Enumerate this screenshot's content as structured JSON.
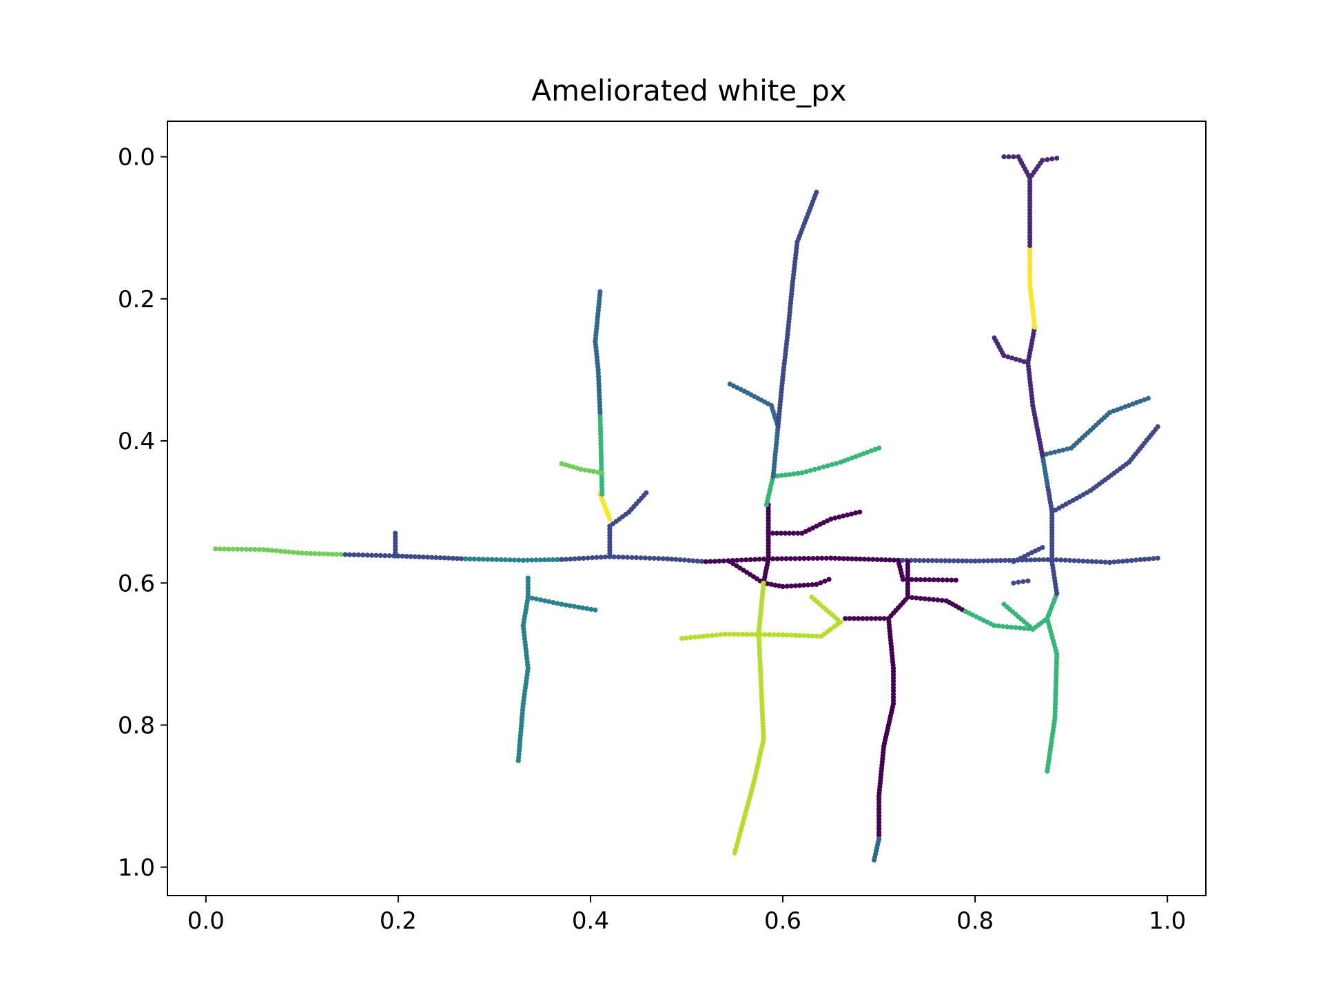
{
  "chart_data": {
    "type": "scatter",
    "title": "Ameliorated white_px",
    "xlabel": "",
    "ylabel": "",
    "xlim": [
      -0.04,
      1.04
    ],
    "ylim": [
      1.04,
      -0.05
    ],
    "y_inverted": true,
    "grid": false,
    "legend": "none",
    "colormap": "viridis",
    "x_ticks": [
      "0.0",
      "0.2",
      "0.4",
      "0.6",
      "0.8",
      "1.0"
    ],
    "y_ticks": [
      "0.0",
      "0.2",
      "0.4",
      "0.6",
      "0.8",
      "1.0"
    ],
    "colors": {
      "c0": "#440154",
      "c1": "#482878",
      "c2": "#3e4989",
      "c3": "#31688e",
      "c4": "#26828e",
      "c5": "#1f9e89",
      "c6": "#35b779",
      "c7": "#6ece58",
      "c8": "#b5de2b",
      "c9": "#fde725"
    },
    "segments": [
      {
        "color": "c7",
        "pts": [
          [
            0.01,
            0.552
          ],
          [
            0.06,
            0.553
          ],
          [
            0.1,
            0.558
          ],
          [
            0.145,
            0.56
          ]
        ]
      },
      {
        "color": "c2",
        "pts": [
          [
            0.145,
            0.56
          ],
          [
            0.2,
            0.562
          ],
          [
            0.27,
            0.566
          ]
        ]
      },
      {
        "color": "c2",
        "pts": [
          [
            0.197,
            0.562
          ],
          [
            0.197,
            0.53
          ]
        ]
      },
      {
        "color": "c4",
        "pts": [
          [
            0.27,
            0.566
          ],
          [
            0.33,
            0.568
          ],
          [
            0.37,
            0.567
          ]
        ]
      },
      {
        "color": "c2",
        "pts": [
          [
            0.37,
            0.567
          ],
          [
            0.42,
            0.563
          ],
          [
            0.48,
            0.566
          ],
          [
            0.52,
            0.57
          ]
        ]
      },
      {
        "color": "c0",
        "pts": [
          [
            0.52,
            0.57
          ],
          [
            0.585,
            0.566
          ],
          [
            0.65,
            0.565
          ],
          [
            0.72,
            0.568
          ]
        ]
      },
      {
        "color": "c2",
        "pts": [
          [
            0.72,
            0.568
          ],
          [
            0.8,
            0.569
          ],
          [
            0.88,
            0.567
          ],
          [
            0.94,
            0.571
          ],
          [
            0.99,
            0.565
          ]
        ]
      },
      {
        "color": "c2",
        "pts": [
          [
            0.42,
            0.563
          ],
          [
            0.42,
            0.52
          ]
        ]
      },
      {
        "color": "c2",
        "pts": [
          [
            0.42,
            0.52
          ],
          [
            0.44,
            0.5
          ],
          [
            0.458,
            0.473
          ]
        ]
      },
      {
        "color": "c9",
        "pts": [
          [
            0.42,
            0.51
          ],
          [
            0.41,
            0.475
          ]
        ]
      },
      {
        "color": "c6",
        "pts": [
          [
            0.412,
            0.475
          ],
          [
            0.41,
            0.36
          ]
        ]
      },
      {
        "color": "c3",
        "pts": [
          [
            0.41,
            0.36
          ],
          [
            0.408,
            0.3
          ],
          [
            0.405,
            0.26
          ],
          [
            0.41,
            0.19
          ]
        ]
      },
      {
        "color": "c7",
        "pts": [
          [
            0.412,
            0.445
          ],
          [
            0.39,
            0.44
          ],
          [
            0.37,
            0.432
          ]
        ]
      },
      {
        "color": "c4",
        "pts": [
          [
            0.335,
            0.593
          ],
          [
            0.335,
            0.62
          ],
          [
            0.37,
            0.63
          ],
          [
            0.405,
            0.638
          ]
        ]
      },
      {
        "color": "c4",
        "pts": [
          [
            0.335,
            0.62
          ],
          [
            0.33,
            0.66
          ],
          [
            0.335,
            0.72
          ],
          [
            0.33,
            0.77
          ],
          [
            0.325,
            0.85
          ]
        ]
      },
      {
        "color": "c0",
        "pts": [
          [
            0.585,
            0.566
          ],
          [
            0.585,
            0.49
          ]
        ]
      },
      {
        "color": "c0",
        "pts": [
          [
            0.585,
            0.53
          ],
          [
            0.62,
            0.53
          ],
          [
            0.65,
            0.51
          ],
          [
            0.68,
            0.5
          ]
        ]
      },
      {
        "color": "c6",
        "pts": [
          [
            0.583,
            0.49
          ],
          [
            0.59,
            0.45
          ],
          [
            0.62,
            0.445
          ],
          [
            0.66,
            0.43
          ],
          [
            0.7,
            0.41
          ]
        ]
      },
      {
        "color": "c3",
        "pts": [
          [
            0.59,
            0.45
          ],
          [
            0.595,
            0.38
          ],
          [
            0.588,
            0.35
          ],
          [
            0.56,
            0.33
          ],
          [
            0.545,
            0.32
          ]
        ]
      },
      {
        "color": "c2",
        "pts": [
          [
            0.595,
            0.38
          ],
          [
            0.6,
            0.31
          ],
          [
            0.605,
            0.25
          ],
          [
            0.61,
            0.18
          ],
          [
            0.615,
            0.12
          ],
          [
            0.635,
            0.05
          ]
        ]
      },
      {
        "color": "c0",
        "pts": [
          [
            0.585,
            0.566
          ],
          [
            0.58,
            0.6
          ],
          [
            0.6,
            0.605
          ],
          [
            0.635,
            0.602
          ],
          [
            0.648,
            0.595
          ]
        ]
      },
      {
        "color": "c0",
        "pts": [
          [
            0.545,
            0.57
          ],
          [
            0.58,
            0.6
          ]
        ]
      },
      {
        "color": "c8",
        "pts": [
          [
            0.58,
            0.6
          ],
          [
            0.575,
            0.67
          ],
          [
            0.58,
            0.82
          ],
          [
            0.57,
            0.88
          ],
          [
            0.56,
            0.93
          ],
          [
            0.55,
            0.98
          ]
        ]
      },
      {
        "color": "c8",
        "pts": [
          [
            0.495,
            0.678
          ],
          [
            0.54,
            0.672
          ],
          [
            0.6,
            0.673
          ],
          [
            0.64,
            0.675
          ],
          [
            0.66,
            0.655
          ],
          [
            0.63,
            0.62
          ]
        ]
      },
      {
        "color": "c0",
        "pts": [
          [
            0.665,
            0.65
          ],
          [
            0.71,
            0.65
          ],
          [
            0.73,
            0.62
          ],
          [
            0.73,
            0.57
          ]
        ]
      },
      {
        "color": "c0",
        "pts": [
          [
            0.72,
            0.568
          ],
          [
            0.725,
            0.595
          ],
          [
            0.78,
            0.596
          ]
        ]
      },
      {
        "color": "c0",
        "pts": [
          [
            0.73,
            0.62
          ],
          [
            0.77,
            0.625
          ],
          [
            0.79,
            0.64
          ]
        ]
      },
      {
        "color": "c0",
        "pts": [
          [
            0.71,
            0.65
          ],
          [
            0.715,
            0.72
          ],
          [
            0.715,
            0.77
          ],
          [
            0.705,
            0.83
          ],
          [
            0.7,
            0.9
          ],
          [
            0.7,
            0.96
          ]
        ]
      },
      {
        "color": "c3",
        "pts": [
          [
            0.7,
            0.96
          ],
          [
            0.695,
            0.99
          ]
        ]
      },
      {
        "color": "c6",
        "pts": [
          [
            0.79,
            0.64
          ],
          [
            0.82,
            0.66
          ],
          [
            0.86,
            0.665
          ],
          [
            0.83,
            0.63
          ]
        ]
      },
      {
        "color": "c6",
        "pts": [
          [
            0.86,
            0.665
          ],
          [
            0.875,
            0.65
          ],
          [
            0.885,
            0.615
          ]
        ]
      },
      {
        "color": "c6",
        "pts": [
          [
            0.875,
            0.65
          ],
          [
            0.885,
            0.7
          ],
          [
            0.883,
            0.79
          ],
          [
            0.875,
            0.865
          ]
        ]
      },
      {
        "color": "c2",
        "pts": [
          [
            0.885,
            0.615
          ],
          [
            0.88,
            0.57
          ],
          [
            0.88,
            0.5
          ],
          [
            0.875,
            0.46
          ]
        ]
      },
      {
        "color": "c2",
        "pts": [
          [
            0.88,
            0.5
          ],
          [
            0.92,
            0.47
          ],
          [
            0.96,
            0.43
          ],
          [
            0.99,
            0.38
          ]
        ]
      },
      {
        "color": "c3",
        "pts": [
          [
            0.875,
            0.46
          ],
          [
            0.87,
            0.42
          ],
          [
            0.9,
            0.41
          ],
          [
            0.94,
            0.36
          ],
          [
            0.98,
            0.34
          ]
        ]
      },
      {
        "color": "c2",
        "pts": [
          [
            0.84,
            0.57
          ],
          [
            0.87,
            0.55
          ]
        ]
      },
      {
        "color": "c2",
        "pts": [
          [
            0.84,
            0.6
          ],
          [
            0.855,
            0.597
          ]
        ]
      },
      {
        "color": "c1",
        "pts": [
          [
            0.87,
            0.42
          ],
          [
            0.86,
            0.35
          ],
          [
            0.855,
            0.29
          ]
        ]
      },
      {
        "color": "c1",
        "pts": [
          [
            0.855,
            0.29
          ],
          [
            0.83,
            0.28
          ],
          [
            0.82,
            0.255
          ]
        ]
      },
      {
        "color": "c1",
        "pts": [
          [
            0.855,
            0.29
          ],
          [
            0.862,
            0.24
          ]
        ]
      },
      {
        "color": "c9",
        "pts": [
          [
            0.862,
            0.24
          ],
          [
            0.857,
            0.18
          ],
          [
            0.857,
            0.125
          ]
        ]
      },
      {
        "color": "c1",
        "pts": [
          [
            0.857,
            0.125
          ],
          [
            0.857,
            0.03
          ]
        ]
      },
      {
        "color": "c1",
        "pts": [
          [
            0.857,
            0.03
          ],
          [
            0.845,
            0.0
          ],
          [
            0.83,
            0.0
          ]
        ]
      },
      {
        "color": "c1",
        "pts": [
          [
            0.857,
            0.03
          ],
          [
            0.87,
            0.005
          ],
          [
            0.885,
            0.002
          ]
        ]
      }
    ]
  }
}
